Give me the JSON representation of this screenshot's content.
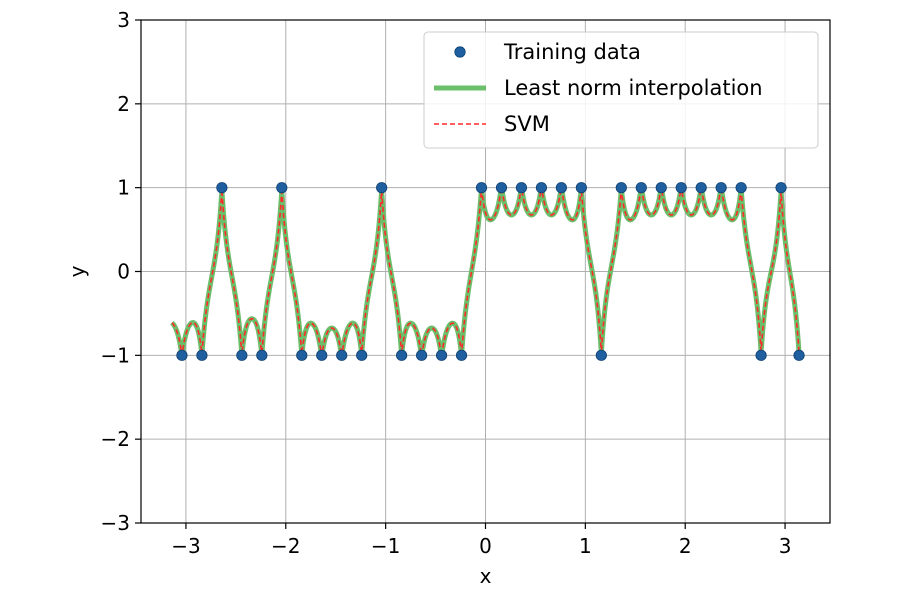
{
  "chart_data": {
    "type": "line",
    "xlabel": "x",
    "ylabel": "y",
    "xlim": [
      -3.45,
      3.45
    ],
    "ylim": [
      -3,
      3
    ],
    "xticks": [
      -3,
      -2,
      -1,
      0,
      1,
      2,
      3
    ],
    "yticks": [
      -3,
      -2,
      -1,
      0,
      1,
      2,
      3
    ],
    "xtick_labels": [
      "−3",
      "−2",
      "−1",
      "0",
      "1",
      "2",
      "3"
    ],
    "ytick_labels": [
      "−3",
      "−2",
      "−1",
      "0",
      "1",
      "2",
      "3"
    ],
    "grid": true,
    "legend_position": "top-right",
    "legend": [
      {
        "key": "training",
        "label": "Training data"
      },
      {
        "key": "lni",
        "label": "Least norm interpolation"
      },
      {
        "key": "svm",
        "label": "SVM"
      }
    ],
    "colors": {
      "training": "#1f5fa0",
      "lni": "#6cbf6a",
      "svm": "#ff2a2a",
      "grid": "#b0b0b0"
    },
    "training_points": [
      {
        "x": -3.04,
        "y": -1
      },
      {
        "x": -2.84,
        "y": -1
      },
      {
        "x": -2.64,
        "y": 1
      },
      {
        "x": -2.44,
        "y": -1
      },
      {
        "x": -2.24,
        "y": -1
      },
      {
        "x": -2.04,
        "y": 1
      },
      {
        "x": -1.84,
        "y": -1
      },
      {
        "x": -1.64,
        "y": -1
      },
      {
        "x": -1.44,
        "y": -1
      },
      {
        "x": -1.24,
        "y": -1
      },
      {
        "x": -1.04,
        "y": 1
      },
      {
        "x": -0.84,
        "y": -1
      },
      {
        "x": -0.64,
        "y": -1
      },
      {
        "x": -0.44,
        "y": -1
      },
      {
        "x": -0.24,
        "y": -1
      },
      {
        "x": -0.04,
        "y": 1
      },
      {
        "x": 0.16,
        "y": 1
      },
      {
        "x": 0.36,
        "y": 1
      },
      {
        "x": 0.56,
        "y": 1
      },
      {
        "x": 0.76,
        "y": 1
      },
      {
        "x": 0.96,
        "y": 1
      },
      {
        "x": 1.16,
        "y": -1
      },
      {
        "x": 1.36,
        "y": 1
      },
      {
        "x": 1.56,
        "y": 1
      },
      {
        "x": 1.76,
        "y": 1
      },
      {
        "x": 1.96,
        "y": 1
      },
      {
        "x": 2.16,
        "y": 1
      },
      {
        "x": 2.36,
        "y": 1
      },
      {
        "x": 2.56,
        "y": 1
      },
      {
        "x": 2.76,
        "y": -1
      },
      {
        "x": 2.96,
        "y": 1
      },
      {
        "x": 3.14,
        "y": -1
      }
    ],
    "curve_x_range": [
      -3.14,
      3.14
    ]
  }
}
